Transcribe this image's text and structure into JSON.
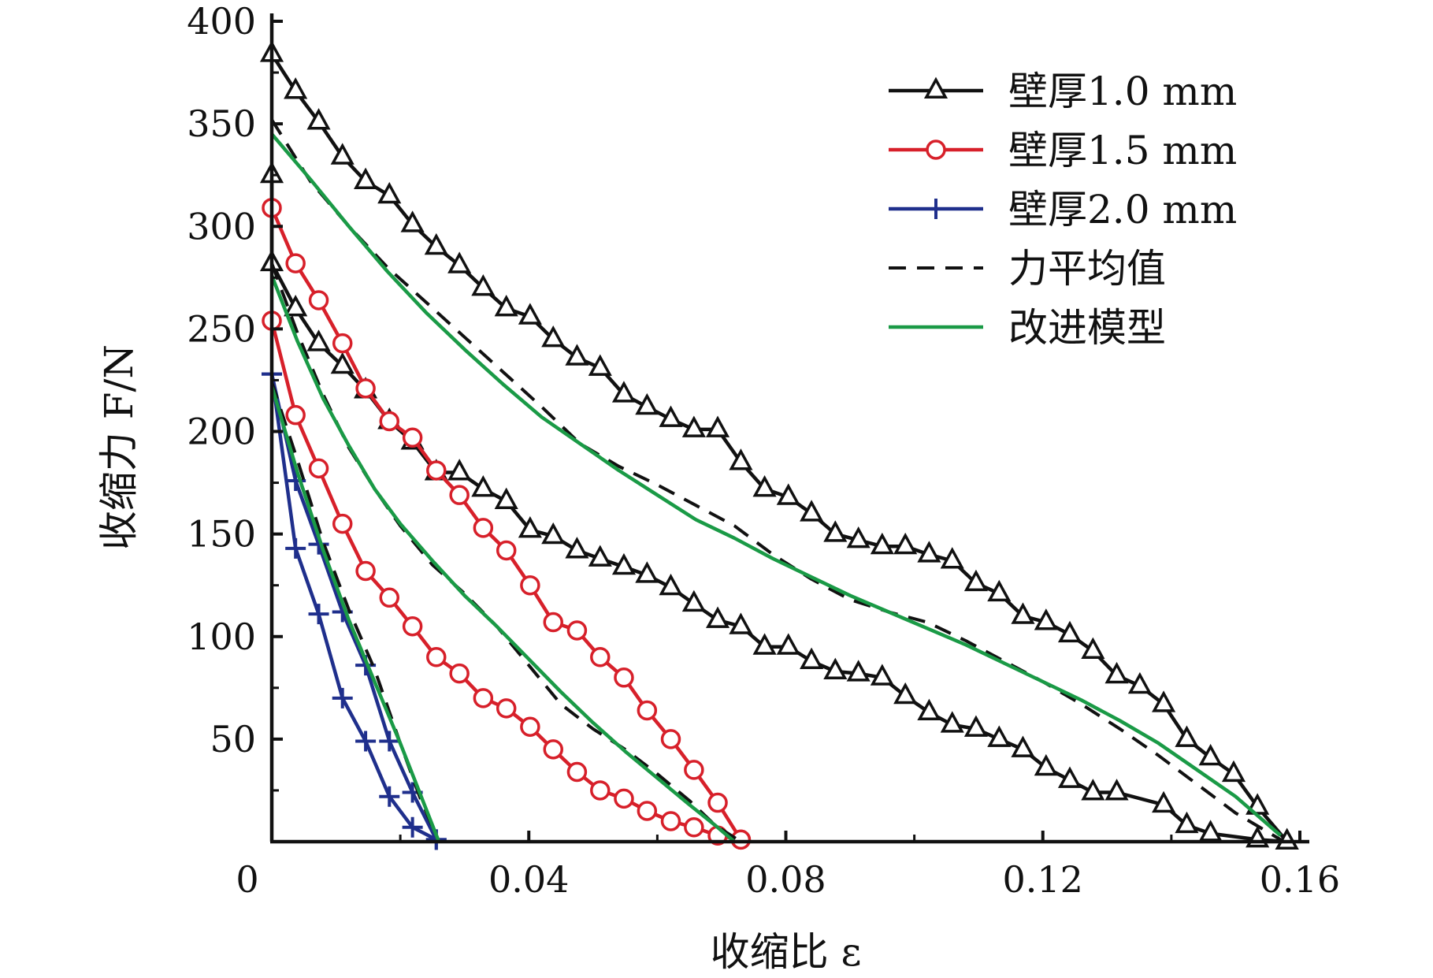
{
  "chart_data": {
    "type": "line",
    "xlabel": "收缩比 ε",
    "ylabel": "收缩力 F/N",
    "xlim": [
      0,
      0.16
    ],
    "ylim": [
      0,
      400
    ],
    "x_ticks": [
      "0",
      "0.04",
      "0.08",
      "0.12",
      "0.16"
    ],
    "x_tick_values": [
      0,
      0.04,
      0.08,
      0.12,
      0.16
    ],
    "y_ticks": [
      "50",
      "100",
      "150",
      "200",
      "250",
      "300",
      "350",
      "400"
    ],
    "y_tick_values": [
      50,
      100,
      150,
      200,
      250,
      300,
      350,
      400
    ],
    "legend_position": "top-right",
    "legend": [
      {
        "label": "壁厚1.0 mm",
        "color": "#111111",
        "marker": "triangle",
        "dash": false
      },
      {
        "label": "壁厚1.5 mm",
        "color": "#d7202a",
        "marker": "circle",
        "dash": false
      },
      {
        "label": "壁厚2.0 mm",
        "color": "#1f2f8c",
        "marker": "plus",
        "dash": false
      },
      {
        "label": "力平均值",
        "color": "#111111",
        "marker": "none",
        "dash": true
      },
      {
        "label": "改进模型",
        "color": "#1a9a46",
        "marker": "none",
        "dash": false
      }
    ],
    "series": [
      {
        "color": "#111111",
        "marker": "triangle",
        "points": [
          [
            0,
            384
          ],
          [
            0.0037,
            366
          ],
          [
            0.0073,
            351
          ],
          [
            0.011,
            334
          ],
          [
            0.0146,
            322
          ],
          [
            0.0183,
            315
          ],
          [
            0.0219,
            301
          ],
          [
            0.0256,
            290
          ],
          [
            0.0292,
            281
          ],
          [
            0.0329,
            270
          ],
          [
            0.0365,
            260
          ],
          [
            0.0402,
            256
          ],
          [
            0.0438,
            245
          ],
          [
            0.0475,
            236
          ],
          [
            0.0511,
            231
          ],
          [
            0.0548,
            218
          ],
          [
            0.0584,
            212
          ],
          [
            0.0621,
            206
          ],
          [
            0.0657,
            201
          ],
          [
            0.0694,
            201
          ],
          [
            0.073,
            185
          ],
          [
            0.0767,
            172
          ],
          [
            0.0804,
            168
          ],
          [
            0.084,
            160
          ],
          [
            0.0877,
            150
          ],
          [
            0.0913,
            147
          ],
          [
            0.095,
            144
          ],
          [
            0.0986,
            144
          ],
          [
            0.1023,
            140
          ],
          [
            0.1059,
            137
          ],
          [
            0.1096,
            126
          ],
          [
            0.1132,
            121
          ],
          [
            0.1169,
            110
          ],
          [
            0.1205,
            107
          ],
          [
            0.1242,
            101
          ],
          [
            0.1278,
            93
          ],
          [
            0.1315,
            81
          ],
          [
            0.1351,
            76
          ],
          [
            0.1388,
            67
          ],
          [
            0.1424,
            50
          ],
          [
            0.1461,
            41
          ],
          [
            0.1497,
            33
          ],
          [
            0.1534,
            17
          ],
          [
            0.158,
            0
          ]
        ]
      },
      {
        "color": "#111111",
        "marker": "triangle",
        "points": [
          [
            0.158,
            0
          ],
          [
            0.1534,
            1
          ],
          [
            0.1461,
            4
          ],
          [
            0.1424,
            8
          ],
          [
            0.1388,
            18
          ],
          [
            0.1315,
            24
          ],
          [
            0.1278,
            24
          ],
          [
            0.1242,
            30
          ],
          [
            0.1205,
            36
          ],
          [
            0.1169,
            45
          ],
          [
            0.1132,
            50
          ],
          [
            0.1096,
            55
          ],
          [
            0.1059,
            57
          ],
          [
            0.1023,
            63
          ],
          [
            0.0986,
            71
          ],
          [
            0.095,
            80
          ],
          [
            0.0913,
            82
          ],
          [
            0.0877,
            83
          ],
          [
            0.084,
            88
          ],
          [
            0.0804,
            95
          ],
          [
            0.0767,
            95
          ],
          [
            0.073,
            105
          ],
          [
            0.0694,
            108
          ],
          [
            0.0657,
            116
          ],
          [
            0.0621,
            124
          ],
          [
            0.0584,
            130
          ],
          [
            0.0548,
            134
          ],
          [
            0.0511,
            138
          ],
          [
            0.0475,
            142
          ],
          [
            0.0438,
            149
          ],
          [
            0.0402,
            152
          ],
          [
            0.0365,
            166
          ],
          [
            0.0329,
            172
          ],
          [
            0.0292,
            180
          ],
          [
            0.0256,
            180
          ],
          [
            0.0219,
            195
          ],
          [
            0.0183,
            205
          ],
          [
            0.0146,
            220
          ],
          [
            0.011,
            232
          ],
          [
            0.0073,
            243
          ],
          [
            0.0037,
            260
          ],
          [
            0,
            282
          ],
          [
            0,
            325
          ]
        ]
      },
      {
        "color": "#d7202a",
        "marker": "circle",
        "points": [
          [
            0,
            309
          ],
          [
            0.0037,
            282
          ],
          [
            0.0073,
            264
          ],
          [
            0.011,
            243
          ],
          [
            0.0146,
            221
          ],
          [
            0.0183,
            205
          ],
          [
            0.0219,
            197
          ],
          [
            0.0256,
            181
          ],
          [
            0.0292,
            169
          ],
          [
            0.0329,
            153
          ],
          [
            0.0365,
            142
          ],
          [
            0.0402,
            125
          ],
          [
            0.0438,
            107
          ],
          [
            0.0475,
            103
          ],
          [
            0.0511,
            90
          ],
          [
            0.0548,
            80
          ],
          [
            0.0584,
            64
          ],
          [
            0.0621,
            50
          ],
          [
            0.0657,
            35
          ],
          [
            0.0694,
            19
          ],
          [
            0.073,
            1
          ]
        ]
      },
      {
        "color": "#d7202a",
        "marker": "circle",
        "points": [
          [
            0.073,
            1
          ],
          [
            0.0694,
            3
          ],
          [
            0.0657,
            7
          ],
          [
            0.0621,
            10
          ],
          [
            0.0584,
            15
          ],
          [
            0.0548,
            21
          ],
          [
            0.0511,
            25
          ],
          [
            0.0475,
            34
          ],
          [
            0.0438,
            45
          ],
          [
            0.0402,
            56
          ],
          [
            0.0365,
            65
          ],
          [
            0.0329,
            70
          ],
          [
            0.0292,
            82
          ],
          [
            0.0256,
            90
          ],
          [
            0.0219,
            105
          ],
          [
            0.0183,
            119
          ],
          [
            0.0146,
            132
          ],
          [
            0.011,
            155
          ],
          [
            0.0073,
            182
          ],
          [
            0.0037,
            208
          ],
          [
            0,
            254
          ]
        ]
      },
      {
        "color": "#1f2f8c",
        "marker": "plus",
        "points": [
          [
            0,
            228
          ],
          [
            0.0037,
            176
          ],
          [
            0.0073,
            145
          ],
          [
            0.011,
            112
          ],
          [
            0.0146,
            86
          ],
          [
            0.0183,
            49
          ],
          [
            0.0219,
            24
          ],
          [
            0.0256,
            1
          ]
        ]
      },
      {
        "color": "#1f2f8c",
        "marker": "plus",
        "points": [
          [
            0.0256,
            1
          ],
          [
            0.0219,
            7
          ],
          [
            0.0183,
            22
          ],
          [
            0.0146,
            49
          ],
          [
            0.011,
            70
          ],
          [
            0.0073,
            111
          ],
          [
            0.0037,
            143
          ],
          [
            0,
            228
          ]
        ]
      },
      {
        "color": "#111111",
        "marker": "none",
        "dash": true,
        "points": [
          [
            0,
            352
          ],
          [
            0.006,
            322
          ],
          [
            0.012,
            300
          ],
          [
            0.018,
            280
          ],
          [
            0.024,
            263
          ],
          [
            0.03,
            246
          ],
          [
            0.036,
            229
          ],
          [
            0.042,
            212
          ],
          [
            0.048,
            194
          ],
          [
            0.054,
            183
          ],
          [
            0.06,
            174
          ],
          [
            0.066,
            164
          ],
          [
            0.072,
            154
          ],
          [
            0.078,
            140
          ],
          [
            0.084,
            128
          ],
          [
            0.09,
            118
          ],
          [
            0.096,
            112
          ],
          [
            0.102,
            107
          ],
          [
            0.108,
            98
          ],
          [
            0.114,
            88
          ],
          [
            0.12,
            78
          ],
          [
            0.126,
            67
          ],
          [
            0.132,
            55
          ],
          [
            0.138,
            42
          ],
          [
            0.144,
            28
          ],
          [
            0.15,
            14
          ],
          [
            0.157,
            1
          ]
        ]
      },
      {
        "color": "#111111",
        "marker": "none",
        "dash": true,
        "points": [
          [
            0,
            282
          ],
          [
            0.004,
            248
          ],
          [
            0.008,
            218
          ],
          [
            0.012,
            192
          ],
          [
            0.016,
            172
          ],
          [
            0.02,
            154
          ],
          [
            0.025,
            135
          ],
          [
            0.03,
            121
          ],
          [
            0.035,
            105
          ],
          [
            0.04,
            86
          ],
          [
            0.045,
            67
          ],
          [
            0.05,
            55
          ],
          [
            0.055,
            45
          ],
          [
            0.06,
            33
          ],
          [
            0.065,
            20
          ],
          [
            0.069,
            8
          ],
          [
            0.073,
            0
          ]
        ]
      },
      {
        "color": "#111111",
        "marker": "none",
        "dash": true,
        "points": [
          [
            0,
            224
          ],
          [
            0.004,
            186
          ],
          [
            0.008,
            146
          ],
          [
            0.012,
            113
          ],
          [
            0.016,
            84
          ],
          [
            0.02,
            48
          ],
          [
            0.023,
            22
          ],
          [
            0.026,
            0
          ]
        ]
      },
      {
        "color": "#1a9a46",
        "marker": "none",
        "points": [
          [
            0,
            345
          ],
          [
            0.006,
            323
          ],
          [
            0.012,
            300
          ],
          [
            0.018,
            278
          ],
          [
            0.024,
            258
          ],
          [
            0.03,
            240
          ],
          [
            0.036,
            223
          ],
          [
            0.042,
            207
          ],
          [
            0.048,
            194
          ],
          [
            0.054,
            181
          ],
          [
            0.06,
            169
          ],
          [
            0.066,
            157
          ],
          [
            0.072,
            148
          ],
          [
            0.078,
            138
          ],
          [
            0.084,
            129
          ],
          [
            0.09,
            120
          ],
          [
            0.096,
            112
          ],
          [
            0.102,
            104
          ],
          [
            0.108,
            96
          ],
          [
            0.114,
            87
          ],
          [
            0.12,
            78
          ],
          [
            0.126,
            69
          ],
          [
            0.132,
            59
          ],
          [
            0.138,
            48
          ],
          [
            0.144,
            35
          ],
          [
            0.15,
            22
          ],
          [
            0.157,
            3
          ]
        ]
      },
      {
        "color": "#1a9a46",
        "marker": "none",
        "points": [
          [
            0,
            276
          ],
          [
            0.004,
            244
          ],
          [
            0.008,
            216
          ],
          [
            0.012,
            193
          ],
          [
            0.016,
            172
          ],
          [
            0.02,
            155
          ],
          [
            0.025,
            137
          ],
          [
            0.03,
            120
          ],
          [
            0.035,
            105
          ],
          [
            0.04,
            89
          ],
          [
            0.045,
            73
          ],
          [
            0.05,
            58
          ],
          [
            0.055,
            44
          ],
          [
            0.06,
            31
          ],
          [
            0.065,
            18
          ],
          [
            0.069,
            8
          ],
          [
            0.072,
            0
          ]
        ]
      },
      {
        "color": "#1a9a46",
        "marker": "none",
        "points": [
          [
            0,
            222
          ],
          [
            0.004,
            180
          ],
          [
            0.008,
            142
          ],
          [
            0.012,
            108
          ],
          [
            0.016,
            78
          ],
          [
            0.02,
            48
          ],
          [
            0.023,
            24
          ],
          [
            0.026,
            0
          ]
        ]
      }
    ]
  }
}
